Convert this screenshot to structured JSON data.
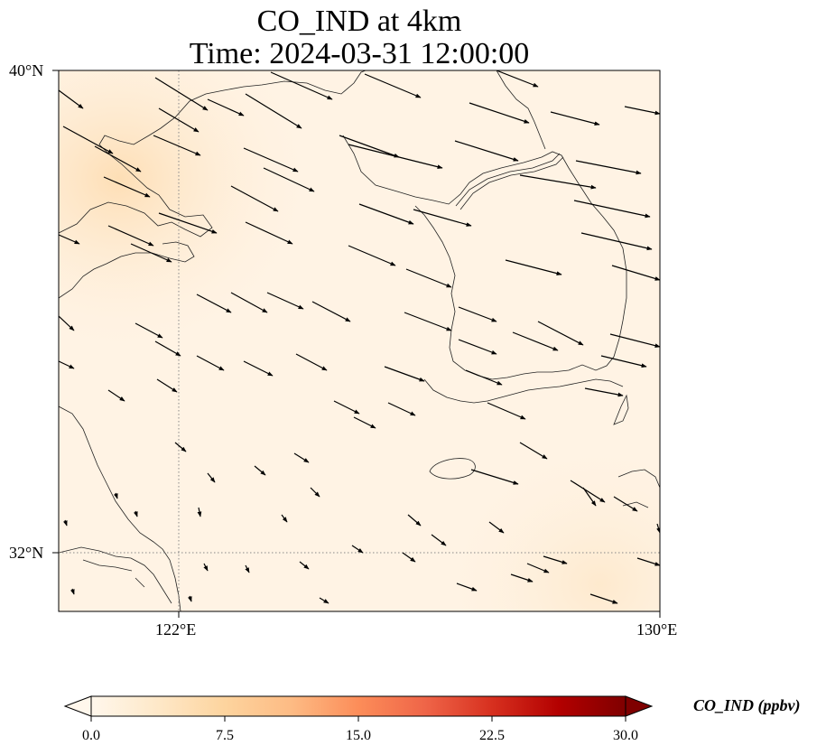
{
  "title": {
    "line1": "CO_IND at 4km",
    "line2": "Time: 2024-03-31 12:00:00"
  },
  "map": {
    "lat_labels": [
      "40°N",
      "32°N"
    ],
    "lon_labels": [
      "122°E",
      "130°E"
    ],
    "lat_range": [
      31,
      40
    ],
    "lon_range": [
      120,
      130
    ],
    "gridlines": {
      "lat": 32,
      "lon": 122,
      "style": "dotted"
    },
    "wind_vectors_shown": true,
    "coastlines_shown": true
  },
  "colorbar": {
    "label": "CO_IND (ppbv)",
    "ticks": [
      "0.0",
      "7.5",
      "15.0",
      "22.5",
      "30.0"
    ],
    "range": [
      0,
      30
    ],
    "extend": "both",
    "colormap": "OrRd",
    "colors": [
      "#fff7ec",
      "#fee8c8",
      "#fdd49e",
      "#fdbb84",
      "#fc8d59",
      "#ef6548",
      "#d7301f",
      "#b30000",
      "#7f0000"
    ]
  }
}
